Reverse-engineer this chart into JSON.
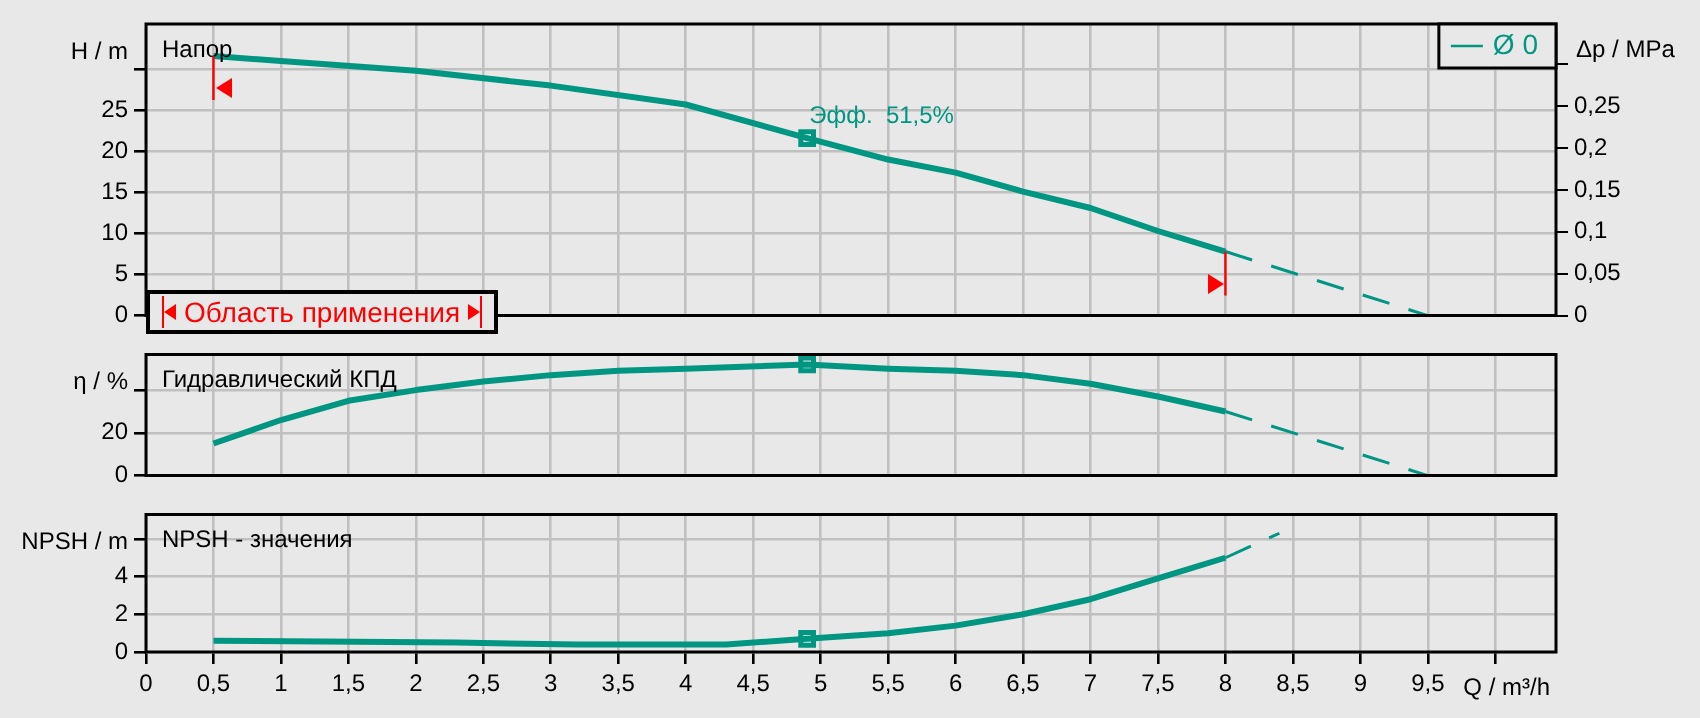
{
  "chart_data": [
    {
      "type": "line",
      "title": "Напор",
      "ylabel": "H / m",
      "y2label": "Δp / MPa",
      "xlim": [
        0,
        10.45
      ],
      "xticks": [
        0,
        0.5,
        1,
        1.5,
        2,
        2.5,
        3,
        3.5,
        4,
        4.5,
        5,
        5.5,
        6,
        6.5,
        7,
        7.5,
        8,
        8.5,
        9,
        9.5,
        10
      ],
      "ylim": [
        0,
        35.5
      ],
      "yticks": [
        0,
        5,
        10,
        15,
        20,
        25,
        {
          "value": 30,
          "label": null
        }
      ],
      "y2lim": [
        0,
        0.348
      ],
      "y2ticks": [
        0,
        {
          "value": 0.05,
          "label": "0,05"
        },
        {
          "value": 0.1,
          "label": "0,1"
        },
        {
          "value": 0.15,
          "label": "0,15"
        },
        {
          "value": 0.2,
          "label": "0,2"
        },
        {
          "value": 0.25,
          "label": "0,25"
        },
        {
          "value": 0.3,
          "label": null
        }
      ],
      "tick_labels": "y",
      "grid": true,
      "legend": "top right",
      "annotations": [
        {
          "text": "Эфф.  51,5%",
          "x": 4.9,
          "y": 21.6
        },
        "Область применения"
      ],
      "ref_lines": [
        {
          "axis": "x",
          "value": 0.5,
          "color": "#ff0000"
        },
        {
          "axis": "x",
          "value": 8,
          "color": "#ff0000"
        }
      ],
      "series": [
        {
          "name": "Ø 0",
          "color": "#009682",
          "x": [
            0.5,
            1,
            2,
            3,
            4,
            4.9,
            5.5,
            6,
            6.5,
            7,
            7.5,
            8
          ],
          "values": [
            31.6,
            31,
            29.8,
            28,
            25.7,
            21.6,
            19,
            17.4,
            15.1,
            13.1,
            10.3,
            7.8
          ]
        },
        {
          "type": "line",
          "line_style": "dashed",
          "color": "#009682",
          "x": [
            8,
            9.5
          ],
          "values": [
            7.8,
            0
          ]
        },
        {
          "type": "scatter",
          "marker": "square",
          "color": "#009682",
          "x": [
            4.9
          ],
          "values": [
            21.6
          ]
        }
      ]
    },
    {
      "type": "line",
      "title": "Гидравлический КПД",
      "ylabel": "η / %",
      "xlim": [
        0,
        10.45
      ],
      "xticks": [
        0,
        0.5,
        1,
        1.5,
        2,
        2.5,
        3,
        3.5,
        4,
        4.5,
        5,
        5.5,
        6,
        6.5,
        7,
        7.5,
        8,
        8.5,
        9,
        9.5,
        10
      ],
      "ylim": [
        0,
        56.7
      ],
      "yticks": [
        0,
        20,
        {
          "value": 40,
          "label": null
        }
      ],
      "tick_labels": "y",
      "grid": true,
      "series": [
        {
          "color": "#009682",
          "x": [
            0.5,
            1,
            1.5,
            2,
            2.5,
            3,
            3.5,
            4,
            4.9,
            5.5,
            6,
            6.5,
            7,
            7.5,
            8
          ],
          "values": [
            15,
            26,
            35,
            40,
            44,
            47,
            49,
            50,
            52,
            50,
            49,
            47,
            43,
            37,
            30
          ]
        },
        {
          "type": "line",
          "line_style": "dashed",
          "color": "#009682",
          "x": [
            8,
            9.5
          ],
          "values": [
            30,
            0
          ]
        },
        {
          "type": "scatter",
          "marker": "square",
          "color": "#009682",
          "x": [
            4.9
          ],
          "values": [
            52
          ]
        }
      ]
    },
    {
      "type": "line",
      "title": "NPSH - значения",
      "ylabel": "NPSH / m",
      "xlabel": "Q / m³/h",
      "xlim": [
        0,
        10.45
      ],
      "xticks": [
        0,
        {
          "value": 0.5,
          "label": "0,5"
        },
        1,
        {
          "value": 1.5,
          "label": "1,5"
        },
        2,
        {
          "value": 2.5,
          "label": "2,5"
        },
        3,
        {
          "value": 3.5,
          "label": "3,5"
        },
        4,
        {
          "value": 4.5,
          "label": "4,5"
        },
        5,
        {
          "value": 5.5,
          "label": "5,5"
        },
        6,
        {
          "value": 6.5,
          "label": "6,5"
        },
        7,
        {
          "value": 7.5,
          "label": "7,5"
        },
        8,
        {
          "value": 8.5,
          "label": "8,5"
        },
        9,
        {
          "value": 9.5,
          "label": "9,5"
        },
        {
          "value": 10,
          "label": null
        }
      ],
      "ylim": [
        0,
        7.3
      ],
      "yticks": [
        0,
        2,
        4,
        {
          "value": 6,
          "label": null
        }
      ],
      "grid": true,
      "series": [
        {
          "color": "#009682",
          "x": [
            0.5,
            2.3,
            3.2,
            4.3,
            4.9,
            5.5,
            6,
            6.5,
            7,
            7.5,
            8
          ],
          "values": [
            0.6,
            0.5,
            0.4,
            0.4,
            0.7,
            1,
            1.4,
            2,
            2.8,
            3.9,
            5
          ]
        },
        {
          "type": "line",
          "line_style": "dashed",
          "color": "#009682",
          "x": [
            8,
            8.4
          ],
          "values": [
            5,
            6.3
          ]
        },
        {
          "type": "scatter",
          "marker": "square",
          "color": "#009682",
          "x": [
            4.9
          ],
          "values": [
            0.7
          ]
        }
      ]
    }
  ]
}
